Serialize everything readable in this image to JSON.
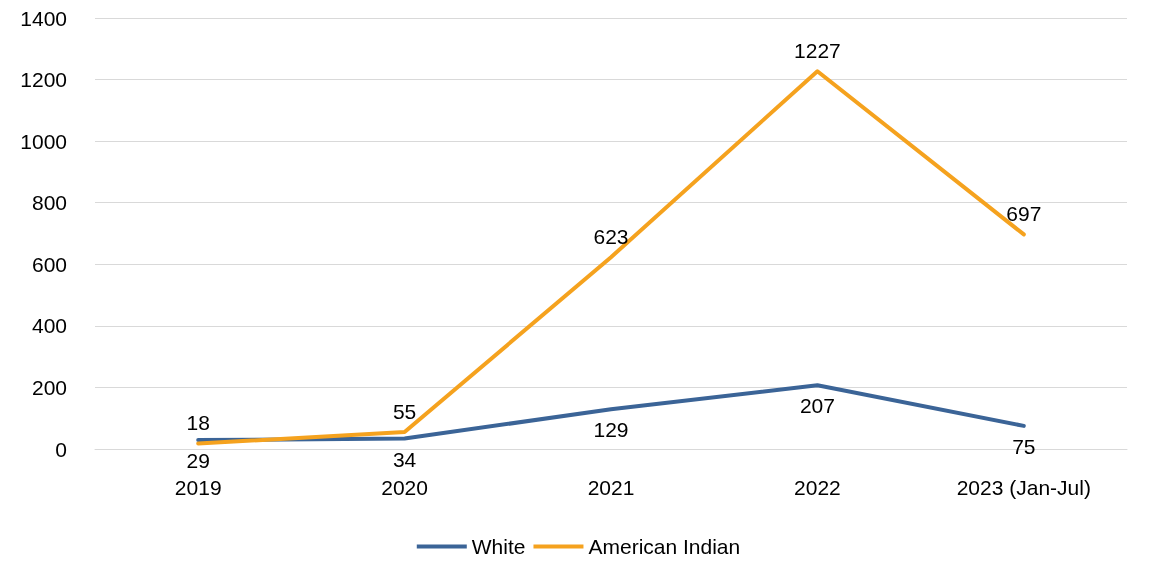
{
  "chart_data": {
    "type": "line",
    "categories": [
      "2019",
      "2020",
      "2021",
      "2022",
      "2023 (Jan-Jul)"
    ],
    "series": [
      {
        "name": "White",
        "color": "#3b6497",
        "values": [
          29,
          34,
          129,
          207,
          75
        ]
      },
      {
        "name": "American Indian",
        "color": "#f5a21e",
        "values": [
          18,
          55,
          623,
          1227,
          697
        ]
      }
    ],
    "ylim": [
      0,
      1400
    ],
    "yticks": [
      0,
      200,
      400,
      600,
      800,
      1000,
      1200,
      1400
    ],
    "grid": "y",
    "legend": "bottom",
    "marker": "none",
    "line_style": "solid",
    "data_labels": true
  }
}
